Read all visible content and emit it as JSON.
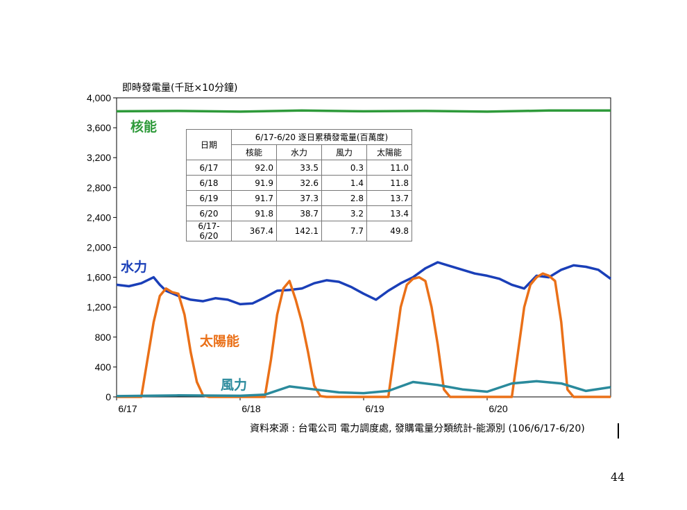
{
  "chart_data": {
    "type": "line",
    "ylabel": "即時發電量(千瓩×10分鐘)",
    "ylim": [
      0,
      4000
    ],
    "yticks": [
      "4,000",
      "3,600",
      "3,200",
      "2,800",
      "2,400",
      "2,000",
      "1,600",
      "1,200",
      "800",
      "400",
      "0"
    ],
    "ytick_values": [
      4000,
      3600,
      3200,
      2800,
      2400,
      2000,
      1600,
      1200,
      800,
      400,
      0
    ],
    "x_ticks": [
      "6/17",
      "6/18",
      "6/19",
      "6/20"
    ],
    "xlim_days": [
      0,
      4
    ],
    "series": [
      {
        "name": "核能",
        "color": "#2e9a3a",
        "x": [
          0,
          0.5,
          1,
          1.5,
          2,
          2.5,
          3,
          3.5,
          4
        ],
        "values": [
          3820,
          3825,
          3815,
          3830,
          3820,
          3825,
          3815,
          3830,
          3830
        ]
      },
      {
        "name": "水力",
        "color": "#1a3fb8",
        "x": [
          0,
          0.1,
          0.2,
          0.3,
          0.35,
          0.4,
          0.5,
          0.6,
          0.7,
          0.8,
          0.9,
          1.0,
          1.1,
          1.2,
          1.3,
          1.4,
          1.5,
          1.6,
          1.7,
          1.8,
          1.9,
          2.0,
          2.1,
          2.2,
          2.3,
          2.4,
          2.5,
          2.6,
          2.7,
          2.8,
          2.9,
          3.0,
          3.1,
          3.2,
          3.3,
          3.4,
          3.5,
          3.6,
          3.7,
          3.8,
          3.9,
          4.0
        ],
        "values": [
          1500,
          1480,
          1520,
          1600,
          1500,
          1420,
          1350,
          1300,
          1280,
          1320,
          1300,
          1240,
          1250,
          1330,
          1420,
          1430,
          1450,
          1520,
          1560,
          1540,
          1470,
          1380,
          1300,
          1420,
          1520,
          1600,
          1720,
          1800,
          1750,
          1700,
          1650,
          1620,
          1580,
          1500,
          1450,
          1620,
          1600,
          1700,
          1760,
          1740,
          1700,
          1580
        ]
      },
      {
        "name": "太陽能",
        "color": "#ea7018",
        "x": [
          0,
          0.2,
          0.25,
          0.3,
          0.35,
          0.4,
          0.45,
          0.5,
          0.55,
          0.6,
          0.65,
          0.7,
          0.75,
          1.0,
          1.2,
          1.25,
          1.3,
          1.35,
          1.4,
          1.45,
          1.5,
          1.55,
          1.6,
          1.65,
          1.7,
          1.75,
          2.0,
          2.2,
          2.25,
          2.3,
          2.35,
          2.4,
          2.45,
          2.5,
          2.55,
          2.6,
          2.65,
          2.7,
          2.75,
          3.0,
          3.2,
          3.25,
          3.3,
          3.35,
          3.4,
          3.45,
          3.5,
          3.55,
          3.6,
          3.65,
          3.7,
          3.75,
          4.0
        ],
        "values": [
          0,
          0,
          500,
          1000,
          1350,
          1450,
          1400,
          1380,
          1100,
          600,
          200,
          20,
          0,
          0,
          0,
          500,
          1100,
          1450,
          1550,
          1300,
          1000,
          600,
          150,
          10,
          0,
          0,
          0,
          0,
          600,
          1200,
          1500,
          1580,
          1600,
          1550,
          1200,
          700,
          100,
          0,
          0,
          0,
          0,
          600,
          1200,
          1500,
          1600,
          1650,
          1620,
          1550,
          1000,
          100,
          0,
          0,
          0
        ]
      },
      {
        "name": "風力",
        "color": "#2a8a9c",
        "x": [
          0,
          0.5,
          1.0,
          1.2,
          1.4,
          1.6,
          1.8,
          2.0,
          2.2,
          2.4,
          2.6,
          2.8,
          3.0,
          3.2,
          3.4,
          3.6,
          3.8,
          4.0
        ],
        "values": [
          10,
          20,
          15,
          30,
          140,
          100,
          60,
          50,
          80,
          200,
          160,
          100,
          70,
          180,
          210,
          180,
          80,
          130
        ]
      }
    ],
    "table": {
      "title": "6/17-6/20 逐日累積發電量(百萬度)",
      "row_header": "日期",
      "columns": [
        "核能",
        "水力",
        "風力",
        "太陽能"
      ],
      "rows": [
        {
          "date": "6/17",
          "values": [
            "92.0",
            "33.5",
            "0.3",
            "11.0"
          ]
        },
        {
          "date": "6/18",
          "values": [
            "91.9",
            "32.6",
            "1.4",
            "11.8"
          ]
        },
        {
          "date": "6/19",
          "values": [
            "91.7",
            "37.3",
            "2.8",
            "13.7"
          ]
        },
        {
          "date": "6/20",
          "values": [
            "91.8",
            "38.7",
            "3.2",
            "13.4"
          ]
        },
        {
          "date": "6/17-6/20",
          "values": [
            "367.4",
            "142.1",
            "7.7",
            "49.8"
          ]
        }
      ]
    }
  },
  "source_text": "資料來源 : 台電公司 電力調度處, 發購電量分類統計-能源別 (106/6/17-6/20)",
  "page_number": "44"
}
